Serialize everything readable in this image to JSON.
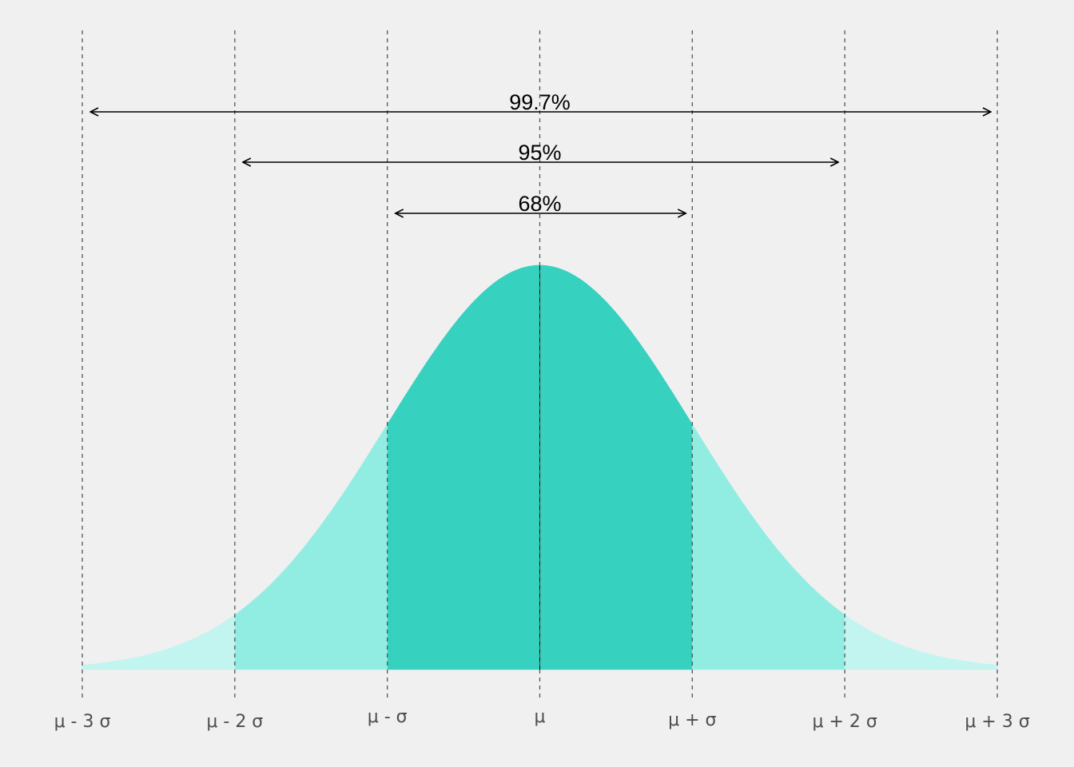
{
  "chart_data": {
    "type": "area",
    "title": "",
    "xlabel": "",
    "ylabel": "",
    "distribution": "normal",
    "xlim": [
      -3,
      3
    ],
    "x_ticks": [
      -3,
      -2,
      -1,
      0,
      1,
      2,
      3
    ],
    "tick_labels": [
      "μ - 3 σ",
      "μ - 2 σ",
      "μ - σ",
      "μ",
      "μ + σ",
      "μ + 2 σ",
      "μ + 3 σ"
    ],
    "bands": [
      {
        "from": -1,
        "to": 1,
        "color": "#36d1bf"
      },
      {
        "from": -2,
        "to": -1,
        "color": "#91ede2"
      },
      {
        "from": 1,
        "to": 2,
        "color": "#91ede2"
      },
      {
        "from": -3,
        "to": -2,
        "color": "#c2f5ef"
      },
      {
        "from": 2,
        "to": 3,
        "color": "#c2f5ef"
      }
    ],
    "intervals": [
      {
        "label": "99.7%",
        "from": -3,
        "to": 3
      },
      {
        "label": "95%",
        "from": -2,
        "to": 2
      },
      {
        "label": "68%",
        "from": -1,
        "to": 1
      }
    ],
    "mean_line": true,
    "grid": false
  }
}
